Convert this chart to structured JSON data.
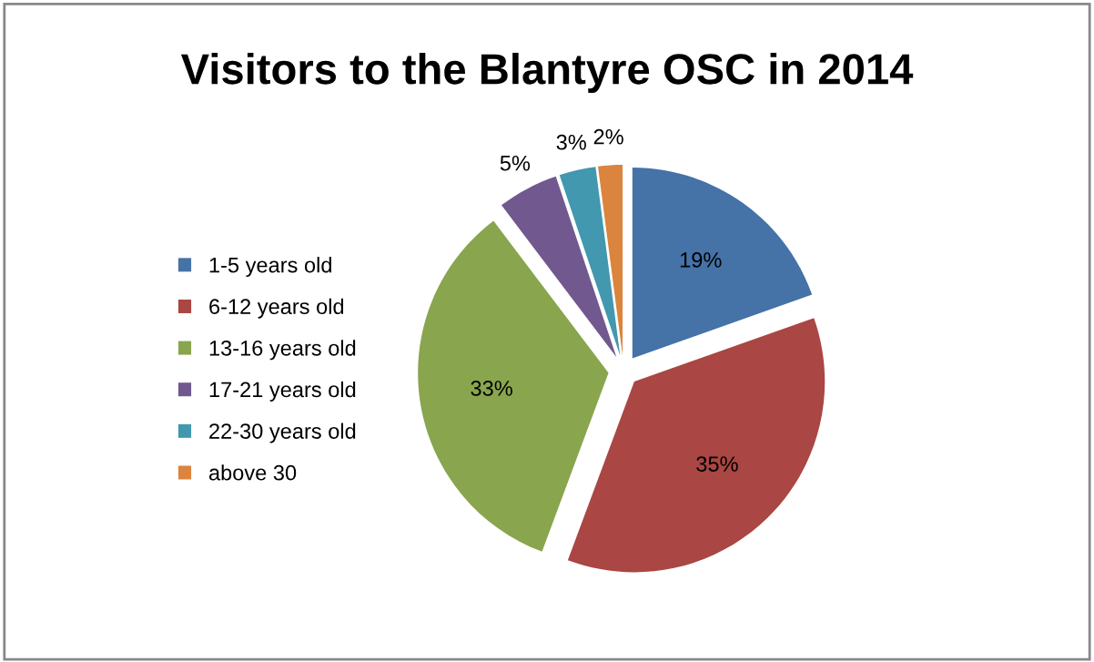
{
  "chart_data": {
    "type": "pie",
    "title": "Visitors to the Blantyre OSC in 2014",
    "categories": [
      "1-5 years old",
      "6-12 years old",
      "13-16 years old",
      "17-21 years old",
      "22-30 years old",
      "above 30"
    ],
    "values": [
      19,
      35,
      33,
      5,
      3,
      2
    ],
    "value_labels": [
      "19%",
      "35%",
      "33%",
      "5%",
      "3%",
      "2%"
    ],
    "colors": [
      "#4572a7",
      "#aa4643",
      "#89a54e",
      "#71588f",
      "#4198af",
      "#db843d"
    ],
    "legend": "left"
  }
}
